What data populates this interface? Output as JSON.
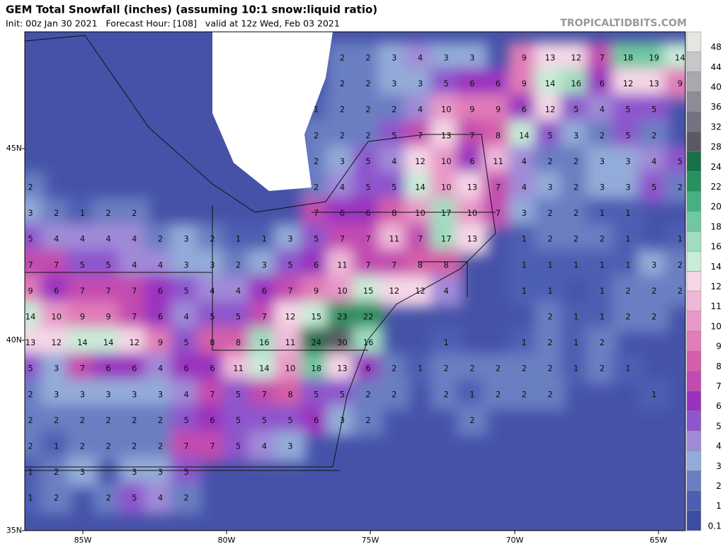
{
  "header": {
    "title": "GEM Total Snowfall (inches) (assuming 10:1 snow:liquid ratio)",
    "subtitle": "Init: 00z Jan 30 2021   Forecast Hour: [108]   valid at 12z Wed, Feb 03 2021",
    "site": "TROPICALTIDBITS.COM"
  },
  "map": {
    "lat_labels": [
      "45N",
      "40N",
      "35N"
    ],
    "lon_labels": [
      "85W",
      "80W",
      "75W",
      "70W",
      "65W"
    ],
    "grid_values": [
      [
        null,
        null,
        null,
        null,
        null,
        null,
        null,
        null,
        null,
        null,
        null,
        null,
        2,
        2,
        3,
        4,
        3,
        3,
        null,
        9,
        13,
        12,
        7,
        18,
        19,
        14
      ],
      [
        null,
        null,
        null,
        null,
        null,
        null,
        null,
        null,
        null,
        null,
        null,
        null,
        2,
        2,
        3,
        3,
        5,
        6,
        6,
        9,
        14,
        16,
        6,
        12,
        13,
        9
      ],
      [
        null,
        null,
        null,
        null,
        null,
        null,
        null,
        null,
        null,
        null,
        null,
        1,
        2,
        2,
        2,
        4,
        10,
        9,
        9,
        6,
        12,
        5,
        4,
        5,
        5,
        null
      ],
      [
        null,
        null,
        null,
        null,
        null,
        null,
        null,
        null,
        null,
        null,
        null,
        2,
        2,
        2,
        5,
        7,
        13,
        7,
        8,
        14,
        5,
        3,
        2,
        5,
        2,
        null
      ],
      [
        null,
        null,
        null,
        null,
        null,
        null,
        null,
        null,
        null,
        null,
        null,
        2,
        3,
        5,
        4,
        12,
        10,
        6,
        11,
        4,
        2,
        2,
        3,
        3,
        4,
        5
      ],
      [
        2,
        null,
        null,
        null,
        null,
        null,
        null,
        null,
        null,
        null,
        null,
        2,
        4,
        5,
        5,
        14,
        10,
        13,
        7,
        4,
        3,
        2,
        3,
        3,
        5,
        2
      ],
      [
        3,
        2,
        1,
        2,
        2,
        null,
        null,
        null,
        null,
        null,
        null,
        7,
        6,
        6,
        8,
        10,
        17,
        10,
        7,
        3,
        2,
        2,
        1,
        1,
        null,
        null
      ],
      [
        5,
        4,
        4,
        4,
        4,
        2,
        3,
        2,
        1,
        1,
        3,
        5,
        7,
        7,
        11,
        7,
        17,
        13,
        null,
        1,
        2,
        2,
        2,
        1,
        null,
        1
      ],
      [
        7,
        7,
        5,
        5,
        4,
        4,
        3,
        3,
        2,
        3,
        5,
        6,
        11,
        7,
        7,
        8,
        8,
        null,
        null,
        1,
        1,
        1,
        1,
        1,
        3,
        2
      ],
      [
        9,
        6,
        7,
        7,
        7,
        6,
        5,
        4,
        4,
        6,
        7,
        9,
        10,
        15,
        12,
        12,
        4,
        null,
        null,
        1,
        1,
        null,
        1,
        2,
        2,
        2
      ],
      [
        14,
        10,
        9,
        9,
        7,
        6,
        4,
        5,
        5,
        7,
        12,
        15,
        23,
        22,
        null,
        null,
        null,
        null,
        null,
        null,
        2,
        1,
        1,
        2,
        2,
        null
      ],
      [
        13,
        12,
        14,
        14,
        12,
        9,
        5,
        8,
        8,
        16,
        11,
        24,
        30,
        16,
        null,
        null,
        1,
        null,
        null,
        1,
        2,
        1,
        2,
        null,
        null,
        null
      ],
      [
        5,
        3,
        7,
        6,
        6,
        4,
        6,
        6,
        11,
        14,
        10,
        18,
        13,
        6,
        2,
        1,
        2,
        2,
        2,
        2,
        2,
        1,
        2,
        1,
        null,
        null
      ],
      [
        2,
        3,
        3,
        3,
        3,
        3,
        4,
        7,
        5,
        7,
        8,
        5,
        5,
        2,
        2,
        null,
        2,
        1,
        2,
        2,
        2,
        null,
        null,
        null,
        1,
        null
      ],
      [
        2,
        2,
        2,
        2,
        2,
        2,
        5,
        6,
        5,
        5,
        5,
        6,
        3,
        2,
        null,
        null,
        null,
        2,
        null,
        null,
        null,
        null,
        null,
        null,
        null,
        null
      ],
      [
        2,
        1,
        2,
        2,
        2,
        2,
        7,
        7,
        5,
        4,
        3,
        null,
        null,
        null,
        null,
        null,
        null,
        null,
        null,
        null,
        null,
        null,
        null,
        null,
        null,
        null
      ],
      [
        1,
        2,
        3,
        null,
        3,
        3,
        5,
        null,
        null,
        null,
        null,
        null,
        null,
        null,
        null,
        null,
        null,
        null,
        null,
        null,
        null,
        null,
        null,
        null,
        null,
        null
      ],
      [
        1,
        2,
        null,
        2,
        5,
        4,
        2,
        null,
        null,
        null,
        null,
        null,
        null,
        null,
        null,
        null,
        null,
        null,
        null,
        null,
        null,
        null,
        null,
        null,
        null,
        null
      ]
    ]
  },
  "colorbar": {
    "levels": [
      0.1,
      1,
      2,
      3,
      4,
      5,
      6,
      7,
      8,
      9,
      10,
      11,
      12,
      14,
      16,
      18,
      20,
      22,
      24,
      28,
      32,
      36,
      40,
      44,
      48
    ],
    "colors": [
      "#3b4ea0",
      "#4d5fb2",
      "#6a7ec2",
      "#93abd8",
      "#a08ad8",
      "#8e55cc",
      "#9a30c0",
      "#c24bb0",
      "#d45fa8",
      "#e07cb8",
      "#e898c8",
      "#f0b8d8",
      "#f5d6e6",
      "#c8ecd8",
      "#a0dcc0",
      "#70c8a0",
      "#48b080",
      "#2a9060",
      "#1a7048",
      "#5a5a66",
      "#727280",
      "#8c8c96",
      "#a8a8ae",
      "#c8c8c8",
      "#e6e6e0"
    ]
  }
}
